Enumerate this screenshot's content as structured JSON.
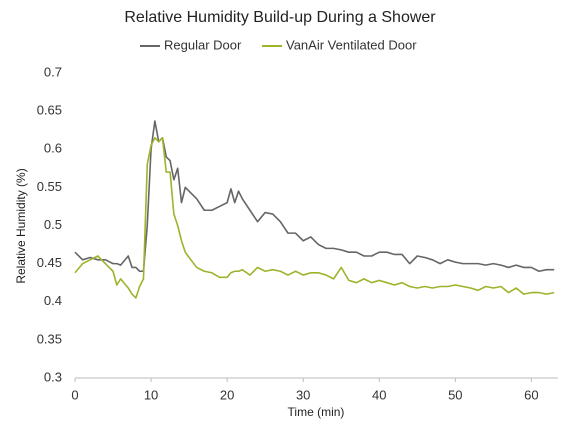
{
  "chart_data": {
    "type": "line",
    "title": "Relative Humidity Build-up During a Shower",
    "x_label": "Time (min)",
    "y_label": "Relative Humidity (%)",
    "x": [
      0,
      1,
      2,
      3,
      4,
      5,
      5.5,
      6,
      7,
      7.5,
      8,
      8.5,
      9,
      9.5,
      10,
      10.5,
      11,
      11.5,
      12,
      12.5,
      13,
      13.5,
      14,
      14.5,
      15,
      16,
      17,
      18,
      19,
      20,
      20.5,
      21,
      21.5,
      22,
      23,
      24,
      25,
      26,
      27,
      28,
      29,
      30,
      31,
      32,
      33,
      34,
      35,
      36,
      37,
      38,
      39,
      40,
      41,
      42,
      43,
      44,
      45,
      46,
      47,
      48,
      49,
      50,
      51,
      52,
      53,
      54,
      55,
      56,
      57,
      58,
      59,
      60,
      61,
      62,
      63
    ],
    "series": [
      {
        "name": "Regular Door",
        "color": "#666666",
        "values": [
          0.465,
          0.455,
          0.458,
          0.455,
          0.455,
          0.45,
          0.45,
          0.448,
          0.46,
          0.445,
          0.445,
          0.44,
          0.44,
          0.5,
          0.6,
          0.637,
          0.61,
          0.615,
          0.59,
          0.585,
          0.56,
          0.575,
          0.53,
          0.55,
          0.545,
          0.535,
          0.52,
          0.52,
          0.525,
          0.53,
          0.548,
          0.53,
          0.545,
          0.535,
          0.52,
          0.505,
          0.517,
          0.515,
          0.505,
          0.49,
          0.49,
          0.48,
          0.485,
          0.475,
          0.47,
          0.47,
          0.468,
          0.465,
          0.465,
          0.46,
          0.46,
          0.465,
          0.465,
          0.462,
          0.462,
          0.45,
          0.46,
          0.458,
          0.455,
          0.45,
          0.455,
          0.452,
          0.45,
          0.45,
          0.45,
          0.448,
          0.45,
          0.448,
          0.445,
          0.448,
          0.445,
          0.445,
          0.44,
          0.442,
          0.442
        ]
      },
      {
        "name": "VanAir Ventilated Door",
        "color": "#9ab52c",
        "values": [
          0.438,
          0.45,
          0.455,
          0.46,
          0.45,
          0.44,
          0.422,
          0.43,
          0.418,
          0.41,
          0.405,
          0.42,
          0.43,
          0.58,
          0.605,
          0.615,
          0.61,
          0.615,
          0.57,
          0.57,
          0.515,
          0.5,
          0.48,
          0.465,
          0.458,
          0.445,
          0.44,
          0.438,
          0.432,
          0.432,
          0.438,
          0.44,
          0.44,
          0.442,
          0.435,
          0.445,
          0.44,
          0.442,
          0.44,
          0.435,
          0.44,
          0.435,
          0.438,
          0.438,
          0.435,
          0.43,
          0.445,
          0.428,
          0.425,
          0.43,
          0.425,
          0.428,
          0.425,
          0.422,
          0.425,
          0.42,
          0.418,
          0.42,
          0.418,
          0.42,
          0.42,
          0.422,
          0.42,
          0.418,
          0.415,
          0.42,
          0.418,
          0.42,
          0.412,
          0.418,
          0.41,
          0.412,
          0.412,
          0.41,
          0.412
        ]
      }
    ],
    "xlim": [
      0,
      63.5
    ],
    "ylim": [
      0.3,
      0.7
    ],
    "xticks": [
      0,
      10,
      20,
      30,
      40,
      50,
      60
    ],
    "yticks": [
      0.3,
      0.35,
      0.4,
      0.45,
      0.5,
      0.55,
      0.6,
      0.65,
      0.7
    ],
    "grid": false,
    "legend": "top"
  }
}
